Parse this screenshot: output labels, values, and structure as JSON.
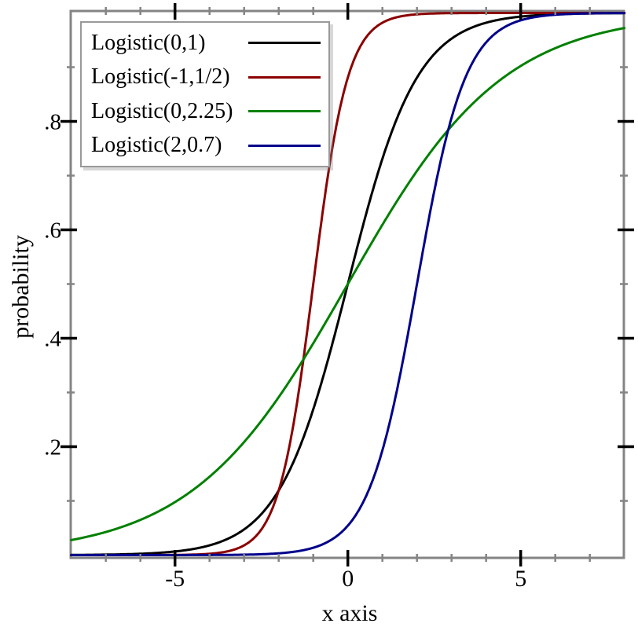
{
  "chart_data": {
    "type": "line",
    "title": "",
    "xlabel": "x axis",
    "ylabel": "probability",
    "xlim": [
      -8,
      8
    ],
    "ylim": [
      0,
      1
    ],
    "grid": false,
    "legend_position": "top-left",
    "curve_function": "logistic CDF: y = 1 / (1 + exp(-(x - mu)/s))",
    "series": [
      {
        "name": "Logistic(0,1)",
        "mu": 0,
        "s": 1,
        "color": "#000000"
      },
      {
        "name": "Logistic(-1,1/2)",
        "mu": -1,
        "s": 0.5,
        "color": "#8b0000"
      },
      {
        "name": "Logistic(0,2.25)",
        "mu": 0,
        "s": 2.25,
        "color": "#008000"
      },
      {
        "name": "Logistic(2,0.7)",
        "mu": 2,
        "s": 0.7,
        "color": "#00008b"
      }
    ],
    "x_ticks": {
      "major": [
        {
          "value": -5,
          "label": "-5"
        },
        {
          "value": 0,
          "label": "0"
        },
        {
          "value": 5,
          "label": "5"
        }
      ],
      "minor": [
        -7,
        -6,
        -4,
        -3,
        -2,
        -1,
        1,
        2,
        3,
        4,
        6,
        7
      ]
    },
    "y_ticks": {
      "major": [
        {
          "value": 0.2,
          "label": ".2"
        },
        {
          "value": 0.4,
          "label": ".4"
        },
        {
          "value": 0.6,
          "label": ".6"
        },
        {
          "value": 0.8,
          "label": ".8"
        }
      ],
      "minor": [
        0.1,
        0.3,
        0.5,
        0.7,
        0.9
      ]
    },
    "colors": {
      "background": "#ffffff",
      "frame": "#848484",
      "minor_tick": "#848484",
      "major_tick": "#000000",
      "legend_border": "#999999",
      "text": "#000000"
    }
  }
}
